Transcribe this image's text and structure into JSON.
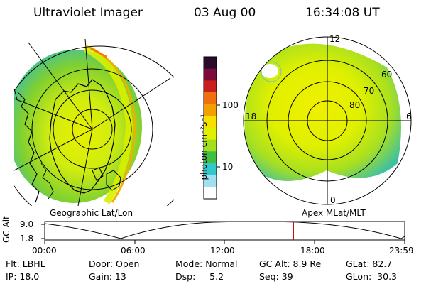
{
  "header": {
    "title": "Ultraviolet Imager",
    "date": "03 Aug 00",
    "time": "16:34:08 UT"
  },
  "left_panel": {
    "caption": "Geographic Lat/Lon"
  },
  "right_panel": {
    "caption": "Apex MLat/MLT",
    "mlt_labels": [
      "12",
      "18",
      "6",
      "0"
    ],
    "lat_labels": [
      "60",
      "70",
      "80"
    ]
  },
  "colorbar": {
    "unit_label": "photon cm⁻²s⁻¹",
    "ticks": [
      "100",
      "10"
    ],
    "scale": "log",
    "colors": [
      "#2a0a2a",
      "#7a0a3a",
      "#c81e1e",
      "#f07010",
      "#f0a000",
      "#f5e000",
      "#e0f000",
      "#a0e020",
      "#40c040",
      "#30c8c8",
      "#a0e0f0",
      "#ffffff"
    ]
  },
  "altitude_plot": {
    "ylabel": "GC Alt",
    "y_ticks": [
      "9.0",
      "1.8"
    ],
    "x_ticks": [
      "00:00",
      "06:00",
      "12:00",
      "18:00",
      "23:59"
    ],
    "marker_time": "16:34",
    "marker_color": "#cc0000"
  },
  "status": {
    "row1": {
      "flt": "Flt: LBHL",
      "door": "Door: Open",
      "mode": "Mode: Normal",
      "gc_alt": "GC Alt: 8.9 Re",
      "glat": "GLat: 82.7"
    },
    "row2": {
      "ip": "IP: 18.0",
      "gain": "Gain: 13",
      "dsp": "Dsp:     5.2",
      "seq": "Seq: 39",
      "glon": "GLon:  30.3"
    }
  }
}
